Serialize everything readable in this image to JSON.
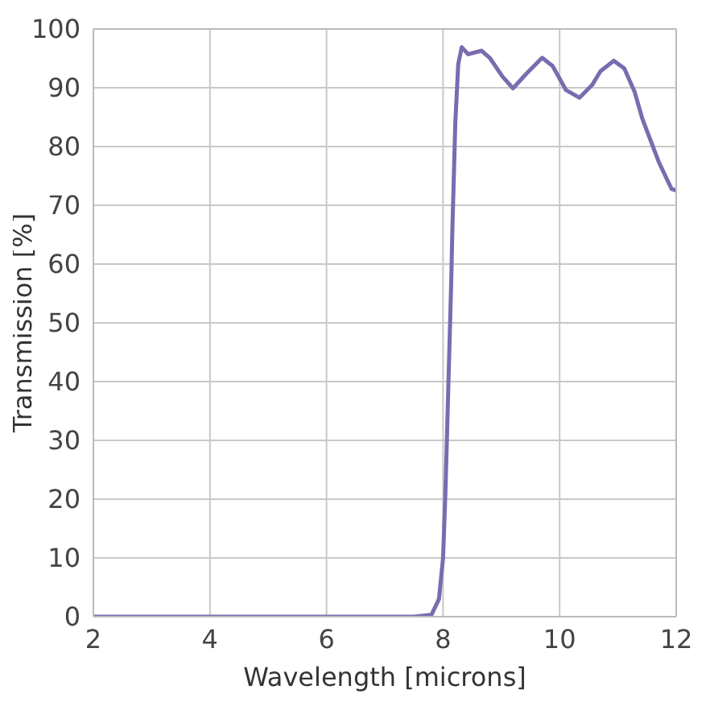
{
  "chart_data": {
    "type": "line",
    "xlabel": "Wavelength [microns]",
    "ylabel": "Transmission [%]",
    "x": [
      2,
      3,
      4,
      5,
      6,
      7,
      7.5,
      7.8,
      7.93,
      8.0,
      8.04,
      8.09,
      8.14,
      8.16,
      8.21,
      8.26,
      8.32,
      8.43,
      8.66,
      8.8,
      9.02,
      9.2,
      9.43,
      9.7,
      9.88,
      10.11,
      10.34,
      10.56,
      10.7,
      10.93,
      11.11,
      11.29,
      11.42,
      11.7,
      11.92,
      12
    ],
    "series": [
      {
        "color": "#7b6bb0",
        "values": [
          0,
          0,
          0,
          0,
          0,
          0,
          0,
          0.3,
          3,
          10,
          21,
          39,
          57,
          66,
          84,
          94,
          96.9,
          95.7,
          96.3,
          95.1,
          91.9,
          89.9,
          92.4,
          95.1,
          93.7,
          89.6,
          88.3,
          90.5,
          92.8,
          94.6,
          93.3,
          89.2,
          84.7,
          77.4,
          72.8,
          72.5
        ]
      }
    ],
    "xlim": [
      2,
      12
    ],
    "xticks": [
      2,
      4,
      6,
      8,
      10,
      12
    ],
    "ylim": [
      0,
      100
    ],
    "yticks": [
      0,
      10,
      20,
      30,
      40,
      50,
      60,
      70,
      80,
      90,
      100
    ],
    "grid": true,
    "marker": "none",
    "line_style": "solid",
    "legend": false
  }
}
